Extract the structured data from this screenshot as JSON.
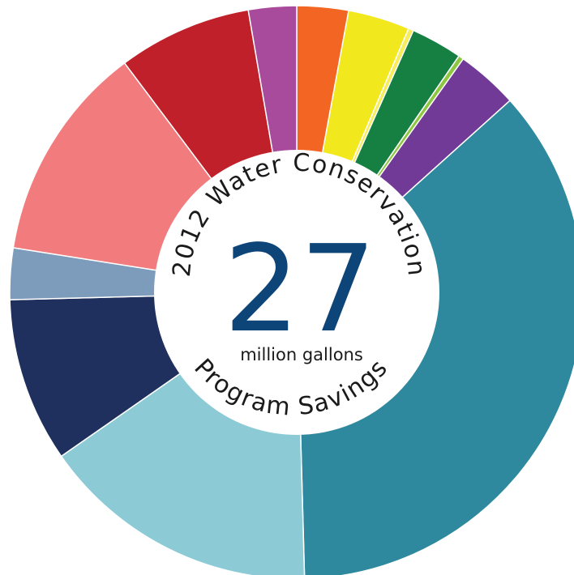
{
  "chart_data": {
    "type": "pie",
    "title_top": "2012 Water Conservation",
    "title_bottom": "Program Savings",
    "center_value": "27",
    "center_unit": "million gallons",
    "slices": [
      {
        "value": 3.0,
        "color": "#f26522"
      },
      {
        "value": 3.6,
        "color": "#f2e81e"
      },
      {
        "value": 0.3,
        "color": "#f7ec5a"
      },
      {
        "value": 3.0,
        "color": "#168042"
      },
      {
        "value": 0.3,
        "color": "#8dc63f"
      },
      {
        "value": 3.6,
        "color": "#703a96"
      },
      {
        "value": 37.5,
        "color": "#2e889e"
      },
      {
        "value": 16.3,
        "color": "#8ccbd6"
      },
      {
        "value": 9.6,
        "color": "#1f305e"
      },
      {
        "value": 3.0,
        "color": "#7d9bba"
      },
      {
        "value": 12.7,
        "color": "#f27b7e"
      },
      {
        "value": 7.8,
        "color": "#c0202a"
      },
      {
        "value": 2.8,
        "color": "#a84b9c"
      }
    ]
  }
}
